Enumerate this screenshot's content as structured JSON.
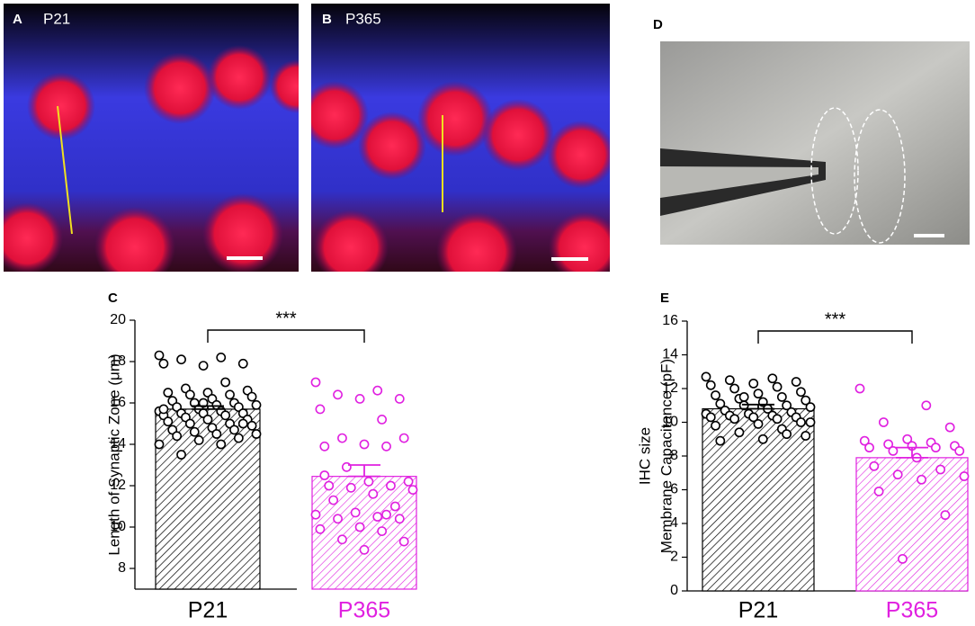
{
  "panels": [
    {
      "letter": "A",
      "label": "P21"
    },
    {
      "letter": "B",
      "label": "P365"
    },
    {
      "letter": "D"
    }
  ],
  "chart_data": [
    {
      "type": "bar",
      "panel": "C",
      "ylabel": [
        "Length of Synaptic Zone (μm)"
      ],
      "categories": [
        "P21",
        "P365"
      ],
      "colors": [
        "#000000",
        "#e020e0"
      ],
      "values": [
        15.7,
        12.45
      ],
      "errors": [
        0.15,
        0.55
      ],
      "points": [
        [
          18.3,
          18.2,
          18.1,
          17.9,
          17.8,
          17.9,
          17.0,
          16.7,
          16.6,
          16.5,
          16.5,
          16.4,
          16.4,
          16.3,
          16.2,
          16.1,
          16.0,
          16.0,
          15.9,
          15.9,
          15.8,
          15.8,
          15.7,
          15.6,
          15.6,
          15.5,
          15.5,
          15.5,
          15.4,
          15.4,
          15.3,
          15.2,
          15.2,
          15.1,
          15.0,
          15.0,
          14.9,
          14.8,
          14.7,
          14.7,
          14.6,
          14.5,
          14.5,
          14.4,
          14.3,
          14.2,
          14.0,
          14.0,
          13.5,
          15.0,
          16.0,
          15.7
        ],
        [
          17.0,
          16.6,
          16.4,
          16.2,
          16.2,
          15.7,
          15.2,
          14.3,
          14.3,
          14.0,
          13.9,
          13.9,
          12.9,
          12.2,
          12.2,
          12.0,
          12.0,
          11.9,
          11.8,
          11.6,
          11.3,
          11.0,
          10.7,
          10.6,
          10.5,
          10.4,
          10.4,
          10.0,
          9.9,
          9.8,
          9.4,
          9.3,
          8.9,
          12.5,
          10.6
        ]
      ],
      "significance": "***",
      "ylim": [
        7,
        20
      ],
      "yticks": [
        8,
        10,
        12,
        14,
        16,
        18,
        20
      ]
    },
    {
      "type": "bar",
      "panel": "E",
      "ylabel": [
        "IHC size",
        "Membrane Capacitance (pF)"
      ],
      "categories": [
        "P21",
        "P365"
      ],
      "colors": [
        "#000000",
        "#e020e0"
      ],
      "values": [
        10.8,
        7.9
      ],
      "errors": [
        0.25,
        0.6
      ],
      "points": [
        [
          12.7,
          12.6,
          12.5,
          12.4,
          12.3,
          12.2,
          12.1,
          12.0,
          11.8,
          11.7,
          11.6,
          11.5,
          11.4,
          11.3,
          11.2,
          11.1,
          11.0,
          11.0,
          10.9,
          10.8,
          10.7,
          10.6,
          10.5,
          10.5,
          10.4,
          10.4,
          10.3,
          10.3,
          10.3,
          10.2,
          10.2,
          10.0,
          9.9,
          9.8,
          9.6,
          9.4,
          9.2,
          9.0,
          8.9,
          9.3,
          11.5,
          10.0
        ],
        [
          12.0,
          11.0,
          10.0,
          9.7,
          9.0,
          8.9,
          8.8,
          8.7,
          8.6,
          8.6,
          8.5,
          8.5,
          8.3,
          8.3,
          7.9,
          7.4,
          7.2,
          6.9,
          6.8,
          6.6,
          5.9,
          4.5,
          1.9
        ]
      ],
      "significance": "***",
      "ylim": [
        0,
        16
      ],
      "yticks": [
        0,
        2,
        4,
        6,
        8,
        10,
        12,
        14,
        16
      ]
    }
  ]
}
